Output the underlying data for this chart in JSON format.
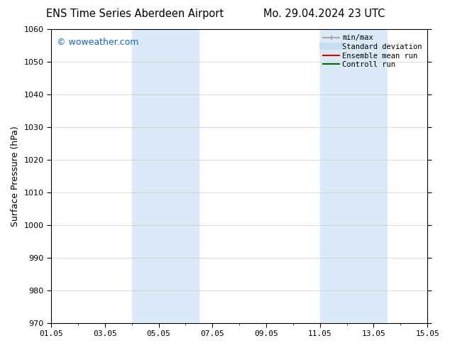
{
  "title_left": "ENS Time Series Aberdeen Airport",
  "title_right": "Mo. 29.04.2024 23 UTC",
  "ylabel": "Surface Pressure (hPa)",
  "ylim": [
    970,
    1060
  ],
  "yticks": [
    970,
    980,
    990,
    1000,
    1010,
    1020,
    1030,
    1040,
    1050,
    1060
  ],
  "xtick_labels": [
    "01.05",
    "03.05",
    "05.05",
    "07.05",
    "09.05",
    "11.05",
    "13.05",
    "15.05"
  ],
  "xtick_positions": [
    0,
    2,
    4,
    6,
    8,
    10,
    12,
    14
  ],
  "shaded_regions": [
    {
      "start": 3.0,
      "end": 5.5,
      "color": "#daeaf8"
    },
    {
      "start": 10.0,
      "end": 12.5,
      "color": "#daeaf8"
    }
  ],
  "background_color": "#ffffff",
  "watermark_text": "© woweather.com",
  "watermark_color": "#1565c0",
  "legend_entries": [
    {
      "label": "min/max",
      "color": "#aaaaaa",
      "lw": 1.5
    },
    {
      "label": "Standard deviation",
      "color": "#c5dff0",
      "lw": 7
    },
    {
      "label": "Ensemble mean run",
      "color": "#dd0000",
      "lw": 1.5
    },
    {
      "label": "Controll run",
      "color": "#006600",
      "lw": 1.5
    }
  ],
  "title_fontsize": 10.5,
  "ylabel_fontsize": 9,
  "tick_fontsize": 8,
  "watermark_fontsize": 9,
  "legend_fontsize": 7.5,
  "grid_color": "#cccccc",
  "grid_lw": 0.5
}
